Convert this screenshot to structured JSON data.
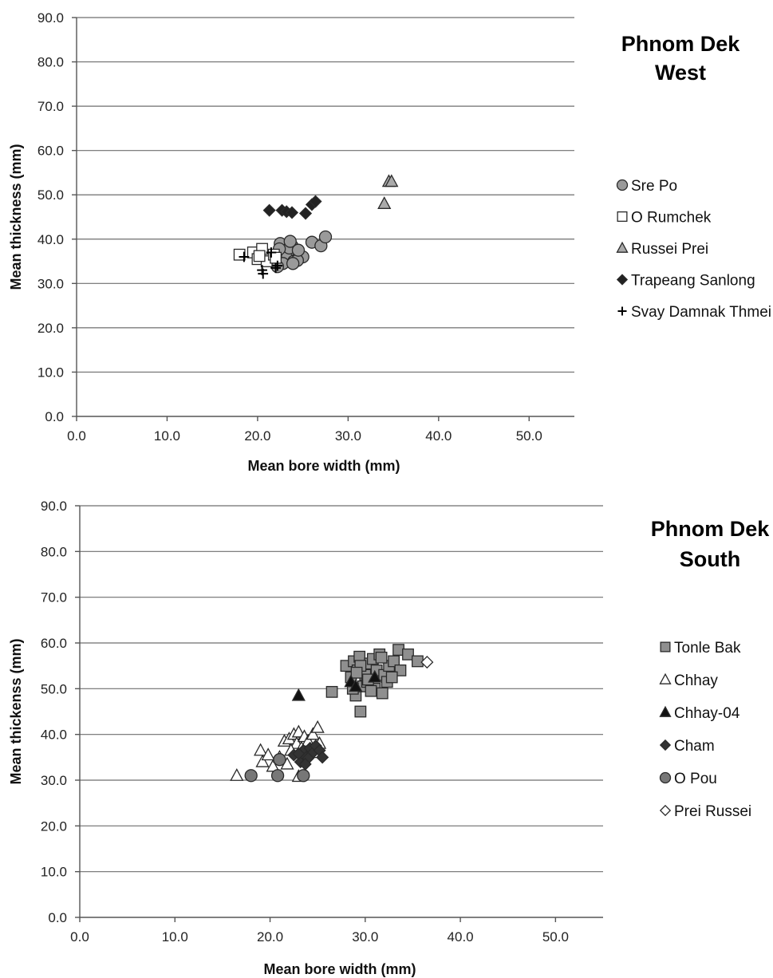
{
  "chart_data": [
    {
      "type": "scatter",
      "title": "Phnom Dek West",
      "title_lines": [
        "Phnom Dek",
        "West"
      ],
      "xlabel": "Mean bore width (mm)",
      "ylabel": "Mean thickness (mm)",
      "xlim": [
        0,
        55
      ],
      "ylim": [
        0,
        90
      ],
      "xticks": [
        "0.0",
        "10.0",
        "20.0",
        "30.0",
        "40.0",
        "50.0"
      ],
      "yticks": [
        "0.0",
        "10.0",
        "20.0",
        "30.0",
        "40.0",
        "50.0",
        "60.0",
        "70.0",
        "80.0",
        "90.0"
      ],
      "grid": "horizontal",
      "legend": "right",
      "series": [
        {
          "name": "Sre Po",
          "marker": "circle",
          "fill": "#9a9a9a",
          "x": [
            22.5,
            23.0,
            23.3,
            23.8,
            24.2,
            24.6,
            22.8,
            23.5,
            24.0,
            25.0,
            24.4,
            23.9,
            24.5,
            26.0,
            27.0,
            27.5,
            22.4,
            22.2,
            23.6
          ],
          "y": [
            39.0,
            37.0,
            36.0,
            38.5,
            37.5,
            36.2,
            34.5,
            38.0,
            35.0,
            36.0,
            35.2,
            34.5,
            37.5,
            39.3,
            38.5,
            40.5,
            37.8,
            33.8,
            39.5
          ]
        },
        {
          "name": "O Rumchek",
          "marker": "square",
          "fill": "#ffffff",
          "x": [
            18.0,
            19.5,
            20.0,
            20.5,
            21.0,
            20.2,
            21.8,
            22.0
          ],
          "y": [
            36.5,
            37.0,
            35.5,
            37.8,
            35.0,
            36.2,
            36.5,
            35.8
          ]
        },
        {
          "name": "Russei Prei",
          "marker": "triangle",
          "fill": "#aaaaaa",
          "x": [
            34.0,
            34.5,
            34.8
          ],
          "y": [
            48.0,
            53.0,
            53.0
          ]
        },
        {
          "name": "Trapeang Sanlong",
          "marker": "diamond",
          "fill": "#222222",
          "x": [
            21.3,
            22.7,
            23.2,
            23.8,
            25.3,
            26.0,
            26.4
          ],
          "y": [
            46.5,
            46.5,
            46.2,
            46.0,
            45.8,
            47.8,
            48.5
          ]
        },
        {
          "name": "Svay Damnak Thmei",
          "marker": "plus",
          "fill": "#000000",
          "x": [
            18.5,
            20.5,
            20.6,
            21.5,
            22.0,
            22.2
          ],
          "y": [
            36.0,
            33.0,
            32.2,
            37.0,
            33.5,
            34.0
          ]
        }
      ]
    },
    {
      "type": "scatter",
      "title": "Phnom Dek South",
      "title_lines": [
        "Phnom Dek",
        "South"
      ],
      "xlabel": "Mean bore width (mm)",
      "ylabel": "Mean thickenss (mm)",
      "xlim": [
        0,
        55
      ],
      "ylim": [
        0,
        90
      ],
      "xticks": [
        "0.0",
        "10.0",
        "20.0",
        "30.0",
        "40.0",
        "50.0"
      ],
      "yticks": [
        "0.0",
        "10.0",
        "20.0",
        "30.0",
        "40.0",
        "50.0",
        "60.0",
        "70.0",
        "80.0",
        "90.0"
      ],
      "grid": "horizontal",
      "legend": "right",
      "series": [
        {
          "name": "Tonle Bak",
          "marker": "square",
          "fill": "#8f8f8f",
          "x": [
            26.5,
            28.0,
            28.5,
            28.8,
            29.0,
            29.2,
            29.4,
            29.5,
            29.8,
            30.0,
            30.2,
            30.5,
            30.8,
            31.0,
            31.2,
            31.5,
            31.8,
            32.0,
            32.3,
            32.5,
            33.0,
            33.5,
            33.7,
            34.5,
            35.5,
            29.5,
            28.7,
            30.3,
            31.7,
            29.1,
            32.8,
            30.6
          ],
          "y": [
            49.3,
            55.0,
            52.5,
            56.0,
            48.5,
            54.0,
            57.0,
            45.0,
            50.5,
            53.0,
            51.5,
            55.5,
            56.5,
            50.0,
            54.0,
            57.5,
            49.0,
            53.0,
            51.5,
            55.0,
            56.0,
            58.5,
            54.0,
            57.5,
            56.0,
            55.0,
            50.0,
            52.0,
            56.8,
            53.5,
            52.5,
            49.5
          ]
        },
        {
          "name": "Chhay",
          "marker": "triangle",
          "fill": "#ffffff",
          "x": [
            16.5,
            19.0,
            19.2,
            19.8,
            20.3,
            21.0,
            21.5,
            22.0,
            22.5,
            22.8,
            23.0,
            23.3,
            23.6,
            24.0,
            24.5,
            25.0,
            25.2,
            23.0,
            22.2,
            21.8,
            24.8
          ],
          "y": [
            31.0,
            36.5,
            34.0,
            35.5,
            33.0,
            35.0,
            38.5,
            39.0,
            40.0,
            38.0,
            40.5,
            37.0,
            39.5,
            38.5,
            40.0,
            41.5,
            38.0,
            30.8,
            36.5,
            33.5,
            36.0
          ]
        },
        {
          "name": "Chhay-04",
          "marker": "triangle",
          "fill": "#111111",
          "x": [
            23.0,
            28.5,
            29.0,
            31.0
          ],
          "y": [
            48.5,
            51.5,
            50.5,
            52.5
          ]
        },
        {
          "name": "Cham",
          "marker": "diamond",
          "fill": "#333333",
          "x": [
            22.5,
            23.2,
            23.5,
            23.8,
            24.2,
            24.5,
            24.8,
            25.2,
            25.5,
            23.0,
            24.0,
            23.7
          ],
          "y": [
            35.5,
            34.0,
            36.5,
            35.0,
            37.0,
            36.0,
            37.5,
            36.5,
            35.0,
            35.8,
            34.8,
            33.5
          ]
        },
        {
          "name": "O Pou",
          "marker": "circle",
          "fill": "#777777",
          "x": [
            18.0,
            21.0,
            20.8,
            23.5
          ],
          "y": [
            31.0,
            34.5,
            31.0,
            31.0
          ]
        },
        {
          "name": "Prei Russei",
          "marker": "diamond",
          "fill": "#ffffff",
          "x": [
            36.5
          ],
          "y": [
            55.8
          ]
        }
      ]
    }
  ]
}
